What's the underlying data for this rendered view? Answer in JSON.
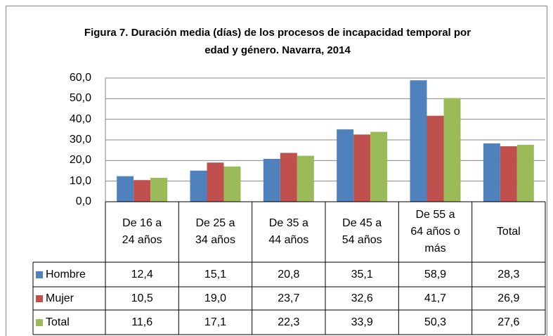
{
  "chart_data": {
    "type": "bar",
    "title": "Figura 7. Duración media (días) de los procesos de incapacidad temporal por edad y género. Navarra, 2014",
    "categories": [
      "De 16 a 24 años",
      "De 25 a 34 años",
      "De 35 a 44 años",
      "De 45 a 54 años",
      "De 55 a 64 años o más",
      "Total"
    ],
    "series": [
      {
        "name": "Hombre",
        "color": "#4f81bd",
        "values": [
          12.4,
          15.1,
          20.8,
          35.1,
          58.9,
          28.3
        ],
        "value_labels": [
          "12,4",
          "15,1",
          "20,8",
          "35,1",
          "58,9",
          "28,3"
        ]
      },
      {
        "name": "Mujer",
        "color": "#c0504d",
        "values": [
          10.5,
          19.0,
          23.7,
          32.6,
          41.7,
          26.9
        ],
        "value_labels": [
          "10,5",
          "19,0",
          "23,7",
          "32,6",
          "41,7",
          "26,9"
        ]
      },
      {
        "name": "Total",
        "color": "#9bbb59",
        "values": [
          11.6,
          17.1,
          22.3,
          33.9,
          50.3,
          27.6
        ],
        "value_labels": [
          "11,6",
          "17,1",
          "22,3",
          "33,9",
          "50,3",
          "27,6"
        ]
      }
    ],
    "ylim": [
      0,
      60
    ],
    "yticks": [
      {
        "value": 0,
        "label": "0,0"
      },
      {
        "value": 10,
        "label": "10,0"
      },
      {
        "value": 20,
        "label": "20,0"
      },
      {
        "value": 30,
        "label": "30,0"
      },
      {
        "value": 40,
        "label": "40,0"
      },
      {
        "value": 50,
        "label": "50,0"
      },
      {
        "value": 60,
        "label": "60,0"
      }
    ],
    "grid": true
  }
}
